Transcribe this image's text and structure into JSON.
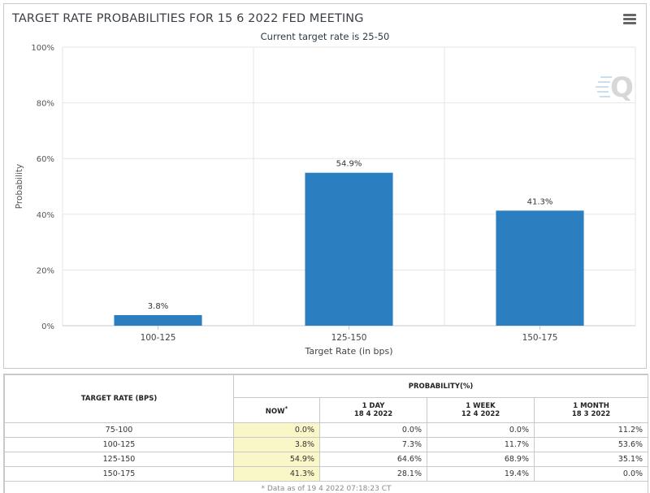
{
  "header": {
    "title": "TARGET RATE PROBABILITIES FOR 15 6 2022 FED MEETING",
    "subtitle": "Current target rate is 25-50",
    "menu_icon": "hamburger-menu-icon",
    "watermark_icon": "q-logo-icon",
    "watermark_text": "Q"
  },
  "chart_data": {
    "type": "bar",
    "categories": [
      "100-125",
      "125-150",
      "150-175"
    ],
    "values": [
      3.8,
      54.9,
      41.3
    ],
    "data_labels": [
      "3.8%",
      "54.9%",
      "41.3%"
    ],
    "title": "TARGET RATE PROBABILITIES FOR 15 6 2022 FED MEETING",
    "subtitle": "Current target rate is 25-50",
    "xlabel": "Target Rate (in bps)",
    "ylabel": "Probability",
    "ylim": [
      0,
      100
    ],
    "yticks": [
      "0%",
      "20%",
      "40%",
      "60%",
      "80%",
      "100%"
    ],
    "ytick_values": [
      0,
      20,
      40,
      60,
      80,
      100
    ],
    "grid": true,
    "bar_color": "#2b7fc0"
  },
  "table": {
    "col_target_header": "TARGET RATE (BPS)",
    "prob_header": "PROBABILITY(%)",
    "columns": [
      {
        "label": "NOW",
        "marker": "*",
        "date": ""
      },
      {
        "label": "1 DAY",
        "date": "18 4 2022"
      },
      {
        "label": "1 WEEK",
        "date": "12 4 2022"
      },
      {
        "label": "1 MONTH",
        "date": "18 3 2022"
      }
    ],
    "rows": [
      {
        "rate": "75-100",
        "values": [
          "0.0%",
          "0.0%",
          "0.0%",
          "11.2%"
        ]
      },
      {
        "rate": "100-125",
        "values": [
          "3.8%",
          "7.3%",
          "11.7%",
          "53.6%"
        ]
      },
      {
        "rate": "125-150",
        "values": [
          "54.9%",
          "64.6%",
          "68.9%",
          "35.1%"
        ]
      },
      {
        "rate": "150-175",
        "values": [
          "41.3%",
          "28.1%",
          "19.4%",
          "0.0%"
        ]
      }
    ],
    "footnote": "* Data as of 19 4 2022 07:18:23 CT",
    "now_highlight_color": "#f9f7c8"
  }
}
